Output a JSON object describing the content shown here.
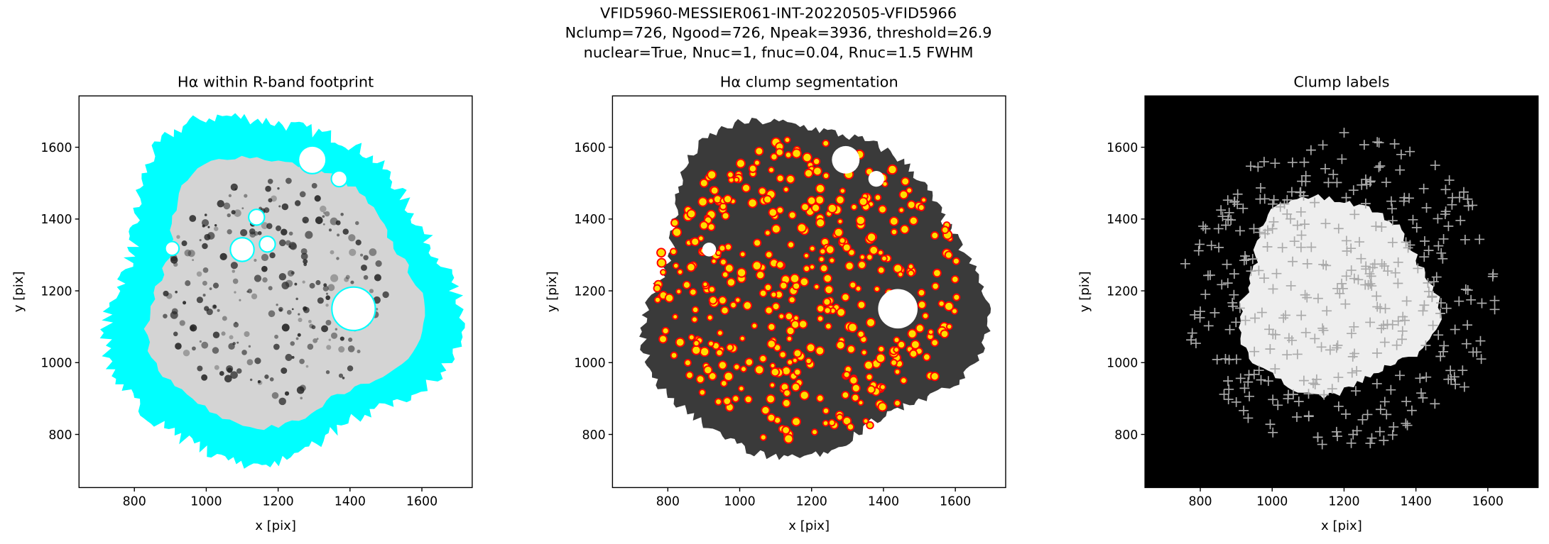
{
  "figure_title": [
    "VFID5960-MESSIER061-INT-20220505-VFID5966",
    "Nclump=726, Ngood=726, Npeak=3936, threshold=26.9",
    "nuclear=True, Nnuc=1, fnuc=0.04, Rnuc=1.5 FWHM"
  ],
  "chart_data": [
    {
      "type": "image",
      "style": "footprint",
      "title": "Hα within R-band footprint",
      "xlabel": "x [pix]",
      "ylabel": "y [pix]",
      "xlim": [
        646,
        1740
      ],
      "ylim": [
        652,
        1743
      ],
      "xticks": [
        800,
        1000,
        1200,
        1400,
        1600
      ],
      "yticks": [
        800,
        1000,
        1200,
        1400,
        1600
      ]
    },
    {
      "type": "image",
      "style": "segmentation",
      "title": "Hα clump segmentation",
      "xlabel": "x [pix]",
      "ylabel": "y [pix]",
      "xlim": [
        646,
        1740
      ],
      "ylim": [
        652,
        1743
      ],
      "xticks": [
        800,
        1000,
        1200,
        1400,
        1600
      ],
      "yticks": [
        800,
        1000,
        1200,
        1400,
        1600
      ]
    },
    {
      "type": "image",
      "style": "labels",
      "title": "Clump labels",
      "xlabel": "x [pix]",
      "ylabel": "y [pix]",
      "xlim": [
        646,
        1740
      ],
      "ylim": [
        652,
        1743
      ],
      "xticks": [
        800,
        1000,
        1200,
        1400,
        1600
      ],
      "yticks": [
        800,
        1000,
        1200,
        1400,
        1600
      ]
    }
  ]
}
